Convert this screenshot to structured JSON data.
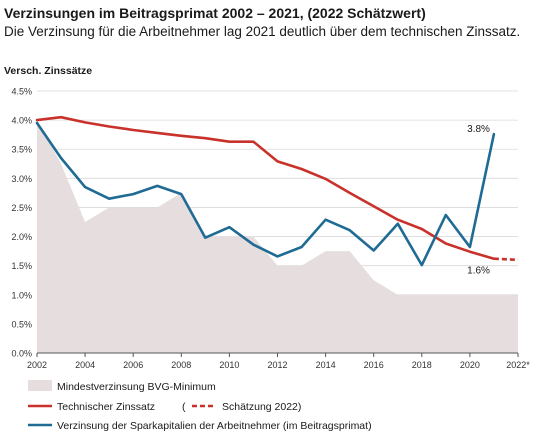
{
  "title": "Verzinsungen im Beitragsprimat 2002 – 2021, (2022 Schätzwert)",
  "subtitle": "Die Verzinsung für die Arbeitnehmer lag 2021 deutlich über dem technischen Zinssatz.",
  "chart_data": {
    "type": "line",
    "ylabel": "Versch. Zinssätze",
    "xlabel": "",
    "xlim": [
      2002,
      2022
    ],
    "ylim": [
      0,
      4.5
    ],
    "y_ticks": [
      "0.0%",
      "0.5%",
      "1.0%",
      "1.5%",
      "2.0%",
      "2.5%",
      "3.0%",
      "3.5%",
      "4.0%",
      "4.5%"
    ],
    "x_ticks": [
      "2002",
      "2004",
      "2006",
      "2008",
      "2010",
      "2012",
      "2014",
      "2016",
      "2018",
      "2020",
      "2022*"
    ],
    "grid": "horizontal",
    "legend_position": "bottom",
    "series": [
      {
        "name": "Mindestverzinsung BVG-Minimum",
        "style": "area",
        "color": "#e6dede",
        "x": [
          2002,
          2003,
          2004,
          2005,
          2006,
          2007,
          2008,
          2009,
          2010,
          2011,
          2012,
          2013,
          2014,
          2015,
          2016,
          2017,
          2018,
          2019,
          2020,
          2021,
          2022
        ],
        "values": [
          4.0,
          3.25,
          2.25,
          2.5,
          2.5,
          2.5,
          2.75,
          2.0,
          2.0,
          2.0,
          1.5,
          1.5,
          1.75,
          1.75,
          1.25,
          1.0,
          1.0,
          1.0,
          1.0,
          1.0,
          1.0
        ]
      },
      {
        "name": "Technischer Zinssatz",
        "style": "line",
        "color": "#c8322a",
        "x": [
          2002,
          2003,
          2004,
          2005,
          2006,
          2007,
          2008,
          2009,
          2010,
          2011,
          2012,
          2013,
          2014,
          2015,
          2016,
          2017,
          2018,
          2019,
          2020,
          2021
        ],
        "values": [
          4.0,
          4.05,
          3.96,
          3.89,
          3.83,
          3.78,
          3.73,
          3.69,
          3.63,
          3.63,
          3.29,
          3.16,
          2.99,
          2.75,
          2.52,
          2.29,
          2.13,
          1.88,
          1.74,
          1.62
        ]
      },
      {
        "name": "Schätzung 2022)",
        "style": "dashed",
        "color": "#c8322a",
        "x": [
          2021,
          2022
        ],
        "values": [
          1.62,
          1.6
        ]
      },
      {
        "name": "Verzinsung der Sparkapitalien der Arbeitnehmer (im Beitragsprimat)",
        "style": "line",
        "color": "#1f6b94",
        "x": [
          2002,
          2003,
          2004,
          2005,
          2006,
          2007,
          2008,
          2009,
          2010,
          2011,
          2012,
          2013,
          2014,
          2015,
          2016,
          2017,
          2018,
          2019,
          2020,
          2021
        ],
        "values": [
          3.95,
          3.35,
          2.85,
          2.65,
          2.73,
          2.87,
          2.73,
          1.98,
          2.16,
          1.86,
          1.66,
          1.82,
          2.29,
          2.11,
          1.76,
          2.22,
          1.51,
          2.37,
          1.82,
          3.76
        ]
      }
    ],
    "annotations": [
      {
        "text": "3.8%",
        "x": 2021,
        "y": 3.76,
        "anchor": "above-left"
      },
      {
        "text": "1.6%",
        "x": 2021,
        "y": 1.62,
        "anchor": "below-left"
      }
    ],
    "legend": {
      "area_label": "Mindestverzinsung BVG-Minimum",
      "red_label": "Technischer Zinssatz",
      "red_paren": "(",
      "dashed_label": "Schätzung 2022)",
      "blue_label": "Verzinsung der Sparkapitalien der Arbeitnehmer (im Beitragsprimat)"
    }
  }
}
